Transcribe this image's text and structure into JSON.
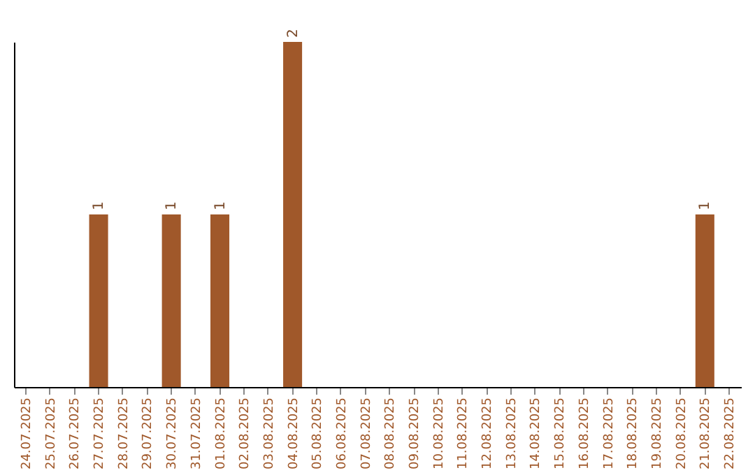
{
  "chart_data": {
    "type": "bar",
    "categories": [
      "24.07.2025",
      "25.07.2025",
      "26.07.2025",
      "27.07.2025",
      "28.07.2025",
      "29.07.2025",
      "30.07.2025",
      "31.07.2025",
      "01.08.2025",
      "02.08.2025",
      "03.08.2025",
      "04.08.2025",
      "05.08.2025",
      "06.08.2025",
      "07.08.2025",
      "08.08.2025",
      "09.08.2025",
      "10.08.2025",
      "11.08.2025",
      "12.08.2025",
      "13.08.2025",
      "14.08.2025",
      "15.08.2025",
      "16.08.2025",
      "17.08.2025",
      "18.08.2025",
      "19.08.2025",
      "20.08.2025",
      "21.08.2025",
      "22.08.2025"
    ],
    "values": [
      null,
      null,
      null,
      1,
      null,
      null,
      1,
      null,
      1,
      null,
      null,
      2,
      null,
      null,
      null,
      null,
      null,
      null,
      null,
      null,
      null,
      null,
      null,
      null,
      null,
      null,
      null,
      null,
      1,
      null
    ],
    "color": "#a0582a",
    "data_labels": true
  }
}
